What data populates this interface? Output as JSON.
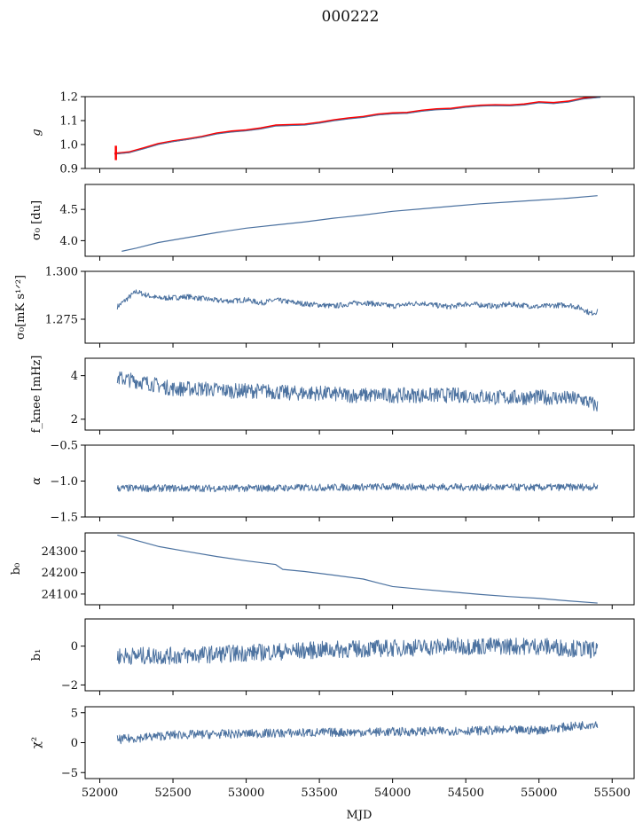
{
  "figure": {
    "title": "000222"
  },
  "chart_data": [
    {
      "type": "line",
      "id": "g",
      "ylabel": "g",
      "xlim": [
        51900,
        55650
      ],
      "ylim": [
        0.9,
        1.2
      ],
      "yticks": [
        0.9,
        1.0,
        1.1,
        1.2
      ],
      "ytick_labels": [
        "0.9",
        "1.0",
        "1.1",
        "1.2"
      ],
      "x_span": [
        52100,
        55400
      ],
      "series": [
        {
          "color": "#ff0000",
          "width": 2.2,
          "points": [
            [
              52100,
              0.962
            ],
            [
              52200,
              0.968
            ],
            [
              52300,
              0.985
            ],
            [
              52400,
              1.003
            ],
            [
              52500,
              1.014
            ],
            [
              52600,
              1.023
            ],
            [
              52700,
              1.033
            ],
            [
              52800,
              1.047
            ],
            [
              52900,
              1.055
            ],
            [
              53000,
              1.06
            ],
            [
              53100,
              1.068
            ],
            [
              53200,
              1.08
            ],
            [
              53300,
              1.082
            ],
            [
              53400,
              1.084
            ],
            [
              53500,
              1.092
            ],
            [
              53600,
              1.102
            ],
            [
              53700,
              1.11
            ],
            [
              53800,
              1.116
            ],
            [
              53900,
              1.126
            ],
            [
              54000,
              1.131
            ],
            [
              54100,
              1.133
            ],
            [
              54200,
              1.142
            ],
            [
              54300,
              1.148
            ],
            [
              54400,
              1.15
            ],
            [
              54500,
              1.158
            ],
            [
              54600,
              1.163
            ],
            [
              54700,
              1.165
            ],
            [
              54800,
              1.164
            ],
            [
              54900,
              1.168
            ],
            [
              55000,
              1.177
            ],
            [
              55100,
              1.174
            ],
            [
              55200,
              1.18
            ],
            [
              55300,
              1.193
            ],
            [
              55420,
              1.2
            ]
          ]
        },
        {
          "color": "#4c72a0",
          "width": 1.0,
          "points": [
            [
              52100,
              0.96
            ],
            [
              52200,
              0.966
            ],
            [
              52300,
              0.982
            ],
            [
              52400,
              1.0
            ],
            [
              52500,
              1.012
            ],
            [
              52600,
              1.021
            ],
            [
              52700,
              1.031
            ],
            [
              52800,
              1.044
            ],
            [
              52900,
              1.052
            ],
            [
              53000,
              1.057
            ],
            [
              53100,
              1.065
            ],
            [
              53200,
              1.077
            ],
            [
              53300,
              1.079
            ],
            [
              53400,
              1.081
            ],
            [
              53500,
              1.089
            ],
            [
              53600,
              1.099
            ],
            [
              53700,
              1.107
            ],
            [
              53800,
              1.113
            ],
            [
              53900,
              1.123
            ],
            [
              54000,
              1.128
            ],
            [
              54100,
              1.13
            ],
            [
              54200,
              1.139
            ],
            [
              54300,
              1.145
            ],
            [
              54400,
              1.147
            ],
            [
              54500,
              1.155
            ],
            [
              54600,
              1.16
            ],
            [
              54700,
              1.162
            ],
            [
              54800,
              1.161
            ],
            [
              54900,
              1.165
            ],
            [
              55000,
              1.174
            ],
            [
              55100,
              1.171
            ],
            [
              55200,
              1.177
            ],
            [
              55300,
              1.19
            ],
            [
              55420,
              1.197
            ]
          ]
        }
      ],
      "error_bar": {
        "x": 52110,
        "y_low": 0.935,
        "y_high": 0.995,
        "color": "#ff0000"
      }
    },
    {
      "type": "line",
      "id": "sigma0_du",
      "ylabel": "σ₀ [du]",
      "xlim": [
        51900,
        55650
      ],
      "ylim": [
        3.75,
        4.9
      ],
      "yticks": [
        4.0,
        4.5
      ],
      "ytick_labels": [
        "4.0",
        "4.5"
      ],
      "x_span": [
        52150,
        55400
      ],
      "series": [
        {
          "color": "#4c72a0",
          "width": 1.2,
          "points": [
            [
              52150,
              3.83
            ],
            [
              52250,
              3.88
            ],
            [
              52400,
              3.97
            ],
            [
              52600,
              4.05
            ],
            [
              52800,
              4.13
            ],
            [
              53000,
              4.2
            ],
            [
              53200,
              4.25
            ],
            [
              53400,
              4.3
            ],
            [
              53600,
              4.36
            ],
            [
              53800,
              4.41
            ],
            [
              54000,
              4.47
            ],
            [
              54200,
              4.51
            ],
            [
              54400,
              4.55
            ],
            [
              54600,
              4.59
            ],
            [
              54800,
              4.62
            ],
            [
              55000,
              4.65
            ],
            [
              55200,
              4.68
            ],
            [
              55400,
              4.72
            ]
          ]
        }
      ]
    },
    {
      "type": "line",
      "id": "sigma0_mk",
      "ylabel": "σ₀[mK s¹ᐟ²]",
      "xlim": [
        51900,
        55650
      ],
      "ylim": [
        1.2625,
        1.3
      ],
      "yticks": [
        1.275,
        1.3
      ],
      "ytick_labels": [
        "1.275",
        "1.300"
      ],
      "x_span": [
        52120,
        55400
      ],
      "series": [
        {
          "color": "#4c72a0",
          "width": 1.0,
          "points": [
            [
              52120,
              1.2815
            ],
            [
              52200,
              1.2865
            ],
            [
              52250,
              1.2895
            ],
            [
              52300,
              1.288
            ],
            [
              52400,
              1.286
            ],
            [
              52500,
              1.2862
            ],
            [
              52600,
              1.2868
            ],
            [
              52700,
              1.2858
            ],
            [
              52800,
              1.2848
            ],
            [
              52900,
              1.2845
            ],
            [
              53000,
              1.2852
            ],
            [
              53100,
              1.2835
            ],
            [
              53200,
              1.285
            ],
            [
              53300,
              1.284
            ],
            [
              53400,
              1.283
            ],
            [
              53500,
              1.2825
            ],
            [
              53600,
              1.2818
            ],
            [
              53700,
              1.283
            ],
            [
              53800,
              1.2838
            ],
            [
              53900,
              1.2828
            ],
            [
              54000,
              1.2818
            ],
            [
              54100,
              1.2828
            ],
            [
              54200,
              1.2835
            ],
            [
              54300,
              1.2822
            ],
            [
              54400,
              1.2815
            ],
            [
              54500,
              1.283
            ],
            [
              54600,
              1.2825
            ],
            [
              54700,
              1.2818
            ],
            [
              54800,
              1.2828
            ],
            [
              54900,
              1.2822
            ],
            [
              55000,
              1.2815
            ],
            [
              55100,
              1.2822
            ],
            [
              55200,
              1.2825
            ],
            [
              55300,
              1.2805
            ],
            [
              55350,
              1.278
            ],
            [
              55400,
              1.279
            ]
          ]
        }
      ],
      "noise": 0.0014
    },
    {
      "type": "line",
      "id": "fknee",
      "ylabel": "f_knee [mHz]",
      "xlim": [
        51900,
        55650
      ],
      "ylim": [
        1.5,
        4.8
      ],
      "yticks": [
        2,
        4
      ],
      "ytick_labels": [
        "2",
        "4"
      ],
      "x_span": [
        52120,
        55400
      ],
      "series": [
        {
          "color": "#4c72a0",
          "width": 1.0,
          "points": [
            [
              52120,
              3.9
            ],
            [
              52300,
              3.7
            ],
            [
              52500,
              3.4
            ],
            [
              52700,
              3.4
            ],
            [
              52900,
              3.3
            ],
            [
              53100,
              3.3
            ],
            [
              53300,
              3.2
            ],
            [
              53500,
              3.2
            ],
            [
              53700,
              3.1
            ],
            [
              53900,
              3.1
            ],
            [
              54100,
              3.1
            ],
            [
              54300,
              3.1
            ],
            [
              54500,
              3.1
            ],
            [
              54700,
              3.0
            ],
            [
              54900,
              3.0
            ],
            [
              55100,
              3.0
            ],
            [
              55300,
              2.9
            ],
            [
              55400,
              2.6
            ]
          ]
        }
      ],
      "noise": 0.35
    },
    {
      "type": "line",
      "id": "alpha",
      "ylabel": "α",
      "xlim": [
        51900,
        55650
      ],
      "ylim": [
        -1.5,
        -0.5
      ],
      "yticks": [
        -1.5,
        -1.0,
        -0.5
      ],
      "ytick_labels": [
        "−1.5",
        "−1.0",
        "−0.5"
      ],
      "x_span": [
        52120,
        55400
      ],
      "series": [
        {
          "color": "#4c72a0",
          "width": 1.0,
          "points": [
            [
              52120,
              -1.1
            ],
            [
              53000,
              -1.1
            ],
            [
              54000,
              -1.08
            ],
            [
              55000,
              -1.09
            ],
            [
              55400,
              -1.08
            ]
          ]
        }
      ],
      "noise": 0.05
    },
    {
      "type": "line",
      "id": "b0",
      "ylabel": "b₀",
      "xlim": [
        51900,
        55650
      ],
      "ylim": [
        24050,
        24385
      ],
      "yticks": [
        24100,
        24200,
        24300
      ],
      "ytick_labels": [
        "24100",
        "24200",
        "24300"
      ],
      "x_span": [
        52120,
        55400
      ],
      "series": [
        {
          "color": "#4c72a0",
          "width": 1.2,
          "points": [
            [
              52120,
              24375
            ],
            [
              52250,
              24350
            ],
            [
              52400,
              24322
            ],
            [
              52600,
              24298
            ],
            [
              52800,
              24275
            ],
            [
              53000,
              24255
            ],
            [
              53200,
              24238
            ],
            [
              53250,
              24215
            ],
            [
              53400,
              24205
            ],
            [
              53600,
              24188
            ],
            [
              53800,
              24170
            ],
            [
              53900,
              24152
            ],
            [
              54000,
              24135
            ],
            [
              54200,
              24122
            ],
            [
              54400,
              24110
            ],
            [
              54600,
              24098
            ],
            [
              54800,
              24088
            ],
            [
              55000,
              24080
            ],
            [
              55200,
              24068
            ],
            [
              55400,
              24058
            ]
          ]
        }
      ]
    },
    {
      "type": "line",
      "id": "b1",
      "ylabel": "b₁",
      "xlim": [
        51900,
        55650
      ],
      "ylim": [
        -2.3,
        1.4
      ],
      "yticks": [
        -2,
        0
      ],
      "ytick_labels": [
        "−2",
        "0"
      ],
      "x_span": [
        52120,
        55400
      ],
      "series": [
        {
          "color": "#4c72a0",
          "width": 1.0,
          "points": [
            [
              52120,
              -0.5
            ],
            [
              52500,
              -0.5
            ],
            [
              53000,
              -0.35
            ],
            [
              53500,
              -0.2
            ],
            [
              54000,
              -0.1
            ],
            [
              54500,
              0.0
            ],
            [
              55000,
              0.0
            ],
            [
              55400,
              -0.2
            ]
          ]
        }
      ],
      "noise": 0.45
    },
    {
      "type": "line",
      "id": "chi2",
      "ylabel": "χ²",
      "xlim": [
        51900,
        55650
      ],
      "ylim": [
        -6,
        6
      ],
      "yticks": [
        -5,
        0,
        5
      ],
      "ytick_labels": [
        "−5",
        "0",
        "5"
      ],
      "x_span": [
        52120,
        55400
      ],
      "series": [
        {
          "color": "#4c72a0",
          "width": 1.0,
          "points": [
            [
              52120,
              0.5
            ],
            [
              52500,
              1.3
            ],
            [
              53000,
              1.5
            ],
            [
              53500,
              1.7
            ],
            [
              54000,
              1.8
            ],
            [
              54500,
              2.0
            ],
            [
              55000,
              2.1
            ],
            [
              55400,
              3.2
            ]
          ]
        }
      ],
      "noise": 0.75
    }
  ],
  "xaxis": {
    "label": "MJD",
    "ticks": [
      52000,
      52500,
      53000,
      53500,
      54000,
      54500,
      55000,
      55500
    ],
    "tick_labels": [
      "52000",
      "52500",
      "53000",
      "53500",
      "54000",
      "54500",
      "55000",
      "55500"
    ]
  }
}
